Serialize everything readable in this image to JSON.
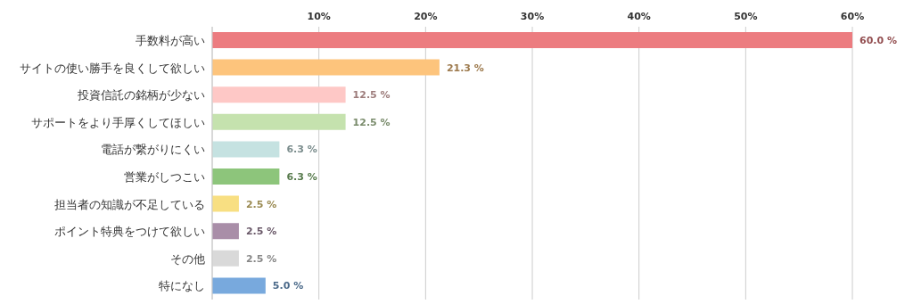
{
  "chart_data": {
    "type": "bar",
    "orientation": "horizontal",
    "categories": [
      "手数料が高い",
      "サイトの使い勝手を良くして欲しい",
      "投資信託の銘柄が少ない",
      "サポートをより手厚くしてほしい",
      "電話が繋がりにくい",
      "営業がしつこい",
      "担当者の知識が不足している",
      "ポイント特典をつけて欲しい",
      "その他",
      "特になし"
    ],
    "values": [
      60.0,
      21.3,
      12.5,
      12.5,
      6.3,
      6.3,
      2.5,
      2.5,
      2.5,
      5.0
    ],
    "value_labels": [
      "60.0 %",
      "21.3 %",
      "12.5 %",
      "12.5 %",
      "6.3 %",
      "6.3 %",
      "2.5 %",
      "2.5 %",
      "2.5 %",
      "5.0 %"
    ],
    "colors": [
      "#ec7c80",
      "#fdc47c",
      "#fec8c6",
      "#c5e2ae",
      "#c5e2e1",
      "#8dc57b",
      "#f8df82",
      "#a98ea8",
      "#d9d9d9",
      "#78a9dd"
    ],
    "xlim": [
      0,
      60
    ],
    "xticks": [
      {
        "value": 0,
        "label": null
      },
      {
        "value": 10,
        "label": "10%"
      },
      {
        "value": 20,
        "label": "20%"
      },
      {
        "value": 30,
        "label": "30%"
      },
      {
        "value": 40,
        "label": "40%"
      },
      {
        "value": 50,
        "label": "50%"
      },
      {
        "value": 60,
        "label": "60%"
      }
    ],
    "grid": "x"
  }
}
